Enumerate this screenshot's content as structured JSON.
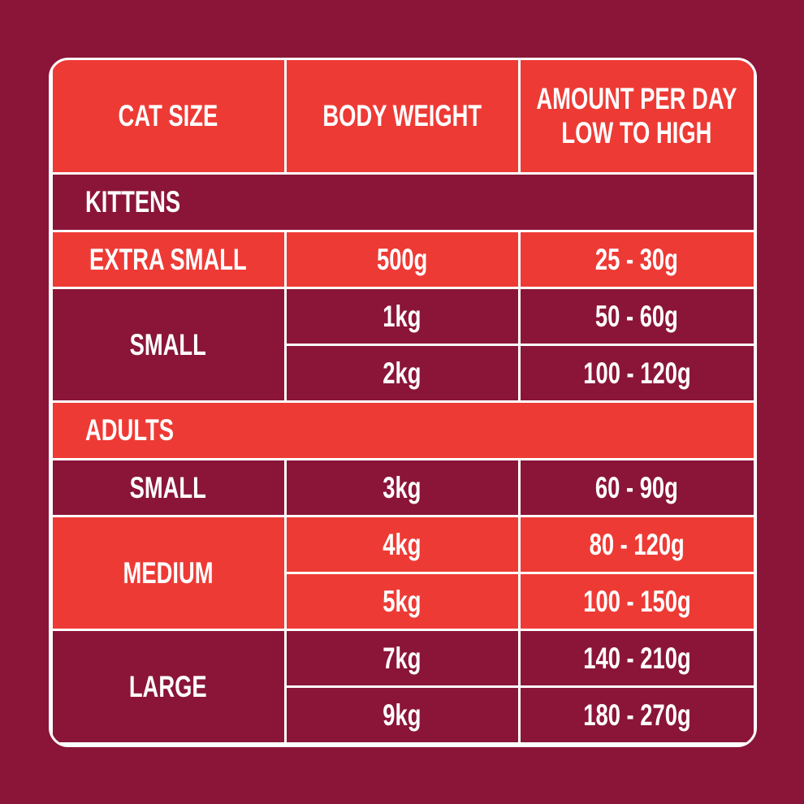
{
  "table": {
    "header": [
      "CAT SIZE",
      "BODY WEIGHT",
      [
        "AMOUNT PER DAY",
        "LOW TO HIGH"
      ]
    ],
    "sections": [
      {
        "title": "KITTENS",
        "groups": [
          {
            "size": "EXTRA SMALL",
            "rows": [
              [
                "500g",
                "25 - 30g"
              ]
            ]
          },
          {
            "size": "SMALL",
            "rows": [
              [
                "1kg",
                "50 - 60g"
              ],
              [
                "2kg",
                "100 - 120g"
              ]
            ]
          }
        ]
      },
      {
        "title": "ADULTS",
        "groups": [
          {
            "size": "SMALL",
            "rows": [
              [
                "3kg",
                "60 - 90g"
              ]
            ]
          },
          {
            "size": "MEDIUM",
            "rows": [
              [
                "4kg",
                "80 - 120g"
              ],
              [
                "5kg",
                "100 - 150g"
              ]
            ]
          },
          {
            "size": "LARGE",
            "rows": [
              [
                "7kg",
                "140 - 210g"
              ],
              [
                "9kg",
                "180 - 270g"
              ]
            ]
          }
        ]
      }
    ]
  }
}
